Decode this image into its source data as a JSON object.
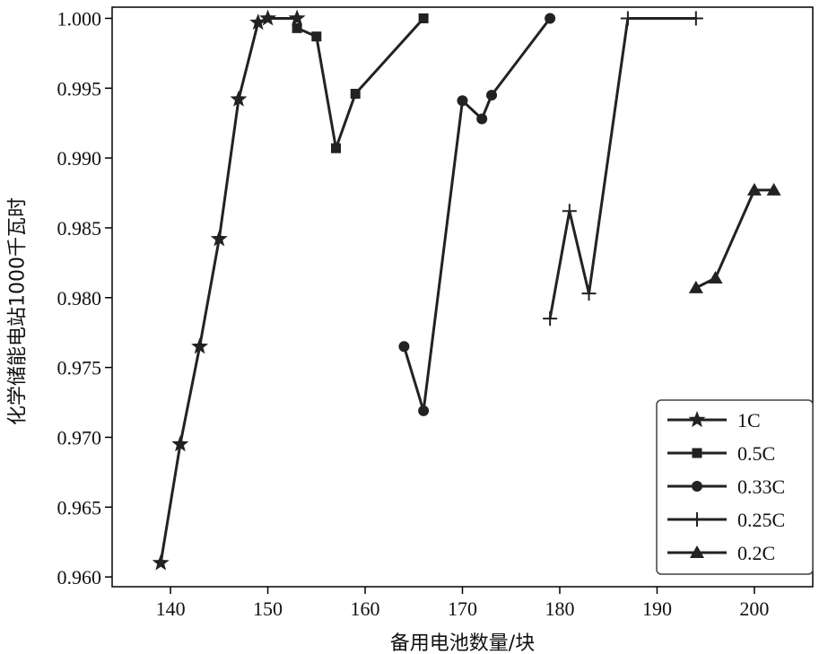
{
  "chart_data": {
    "type": "line",
    "xlabel": "备用电池数量/块",
    "ylabel": "化学储能电站1000千瓦时",
    "xlim": [
      134,
      206
    ],
    "ylim": [
      0.9593,
      1.0008
    ],
    "xticks": [
      140,
      150,
      160,
      170,
      180,
      190,
      200
    ],
    "yticks": [
      0.96,
      0.965,
      0.97,
      0.975,
      0.98,
      0.985,
      0.99,
      0.995,
      1.0
    ],
    "ytick_labels": [
      "0.960",
      "0.965",
      "0.970",
      "0.975",
      "0.980",
      "0.985",
      "0.990",
      "0.995",
      "1.000"
    ],
    "grid": false,
    "legend_position": "bottom-right",
    "line_color": "#222222",
    "series": [
      {
        "name": "1C",
        "marker": "star",
        "x": [
          139,
          141,
          143,
          145,
          147,
          149,
          150,
          153
        ],
        "y": [
          0.961,
          0.9695,
          0.9765,
          0.9842,
          0.9942,
          0.9997,
          1.0,
          1.0
        ]
      },
      {
        "name": "0.5C",
        "marker": "square",
        "x": [
          153,
          155,
          157,
          159,
          166
        ],
        "y": [
          0.9993,
          0.9987,
          0.9907,
          0.9946,
          1.0
        ]
      },
      {
        "name": "0.33C",
        "marker": "circle",
        "x": [
          164,
          166,
          170,
          172,
          173,
          179
        ],
        "y": [
          0.9765,
          0.9719,
          0.9941,
          0.9928,
          0.9945,
          1.0
        ]
      },
      {
        "name": "0.25C",
        "marker": "plus",
        "x": [
          179,
          181,
          183,
          187,
          194
        ],
        "y": [
          0.9785,
          0.9862,
          0.9803,
          1.0,
          1.0
        ]
      },
      {
        "name": "0.2C",
        "marker": "triangle",
        "x": [
          194,
          196,
          200,
          202
        ],
        "y": [
          0.9807,
          0.9814,
          0.9877,
          0.9877
        ]
      }
    ]
  }
}
